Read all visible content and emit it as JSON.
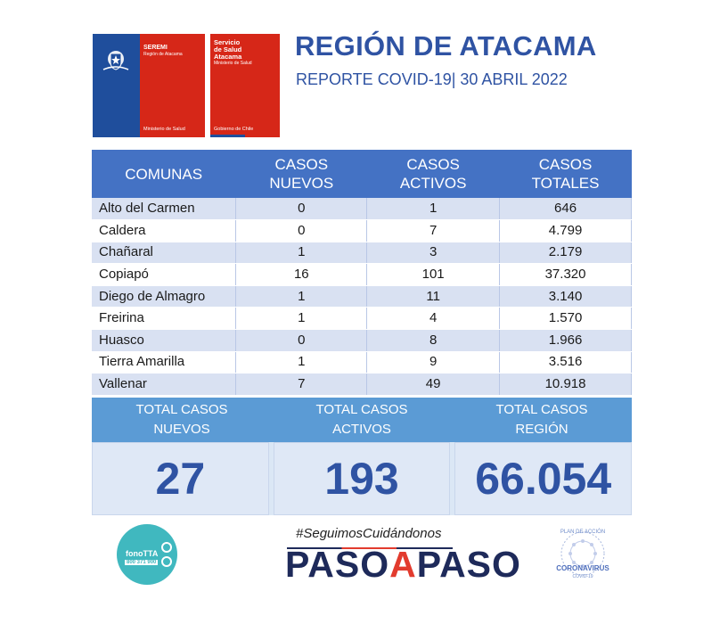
{
  "logos": {
    "seremi": {
      "line1": "SEREMI",
      "line2": "Región de Atacama",
      "footer": "Ministerio de Salud"
    },
    "servicio": {
      "line1": "Servicio",
      "line2": "de Salud",
      "line3": "Atacama",
      "line4": "Ministerio de Salud",
      "footer": "Gobierno de Chile"
    }
  },
  "header": {
    "title": "REGIÓN DE ATACAMA",
    "subtitle": "REPORTE COVID-19| 30 ABRIL 2022"
  },
  "table": {
    "headers": [
      {
        "l1": "COMUNAS",
        "l2": ""
      },
      {
        "l1": "CASOS",
        "l2": "NUEVOS"
      },
      {
        "l1": "CASOS",
        "l2": "ACTIVOS"
      },
      {
        "l1": "CASOS",
        "l2": "TOTALES"
      }
    ],
    "rows": [
      {
        "comuna": "Alto del Carmen",
        "nuevos": "0",
        "activos": "1",
        "totales": "646"
      },
      {
        "comuna": "Caldera",
        "nuevos": "0",
        "activos": "7",
        "totales": "4.799"
      },
      {
        "comuna": "Chañaral",
        "nuevos": "1",
        "activos": "3",
        "totales": "2.179"
      },
      {
        "comuna": "Copiapó",
        "nuevos": "16",
        "activos": "101",
        "totales": "37.320"
      },
      {
        "comuna": "Diego de Almagro",
        "nuevos": "1",
        "activos": "11",
        "totales": "3.140"
      },
      {
        "comuna": "Freirina",
        "nuevos": "1",
        "activos": "4",
        "totales": "1.570"
      },
      {
        "comuna": "Huasco",
        "nuevos": "0",
        "activos": "8",
        "totales": "1.966"
      },
      {
        "comuna": "Tierra Amarilla",
        "nuevos": "1",
        "activos": "9",
        "totales": "3.516"
      },
      {
        "comuna": "Vallenar",
        "nuevos": "7",
        "activos": "49",
        "totales": "10.918"
      }
    ]
  },
  "totals": {
    "labels": [
      {
        "l1": "TOTAL CASOS",
        "l2": "NUEVOS"
      },
      {
        "l1": "TOTAL CASOS",
        "l2": "ACTIVOS"
      },
      {
        "l1": "TOTAL CASOS",
        "l2": "REGIÓN"
      }
    ],
    "values": [
      "27",
      "193",
      "66.054"
    ]
  },
  "footer": {
    "fono_name": "fonoTTA",
    "fono_number": "800 371 900",
    "hashtag": "#SeguimosCuidándonos",
    "paso_1": "PASO",
    "paso_a": "A",
    "paso_2": "PASO",
    "plan_top": "PLAN DE ACCIÓN",
    "plan_main": "CORONAVIRUS",
    "plan_sub": "COVID-19"
  },
  "colors": {
    "title_blue": "#2f53a3",
    "header_blue": "#4472c4",
    "row_alt": "#d9e1f2",
    "totals_blue": "#5b9bd5",
    "chile_red": "#d62718",
    "chile_blue": "#1f4e9c"
  }
}
